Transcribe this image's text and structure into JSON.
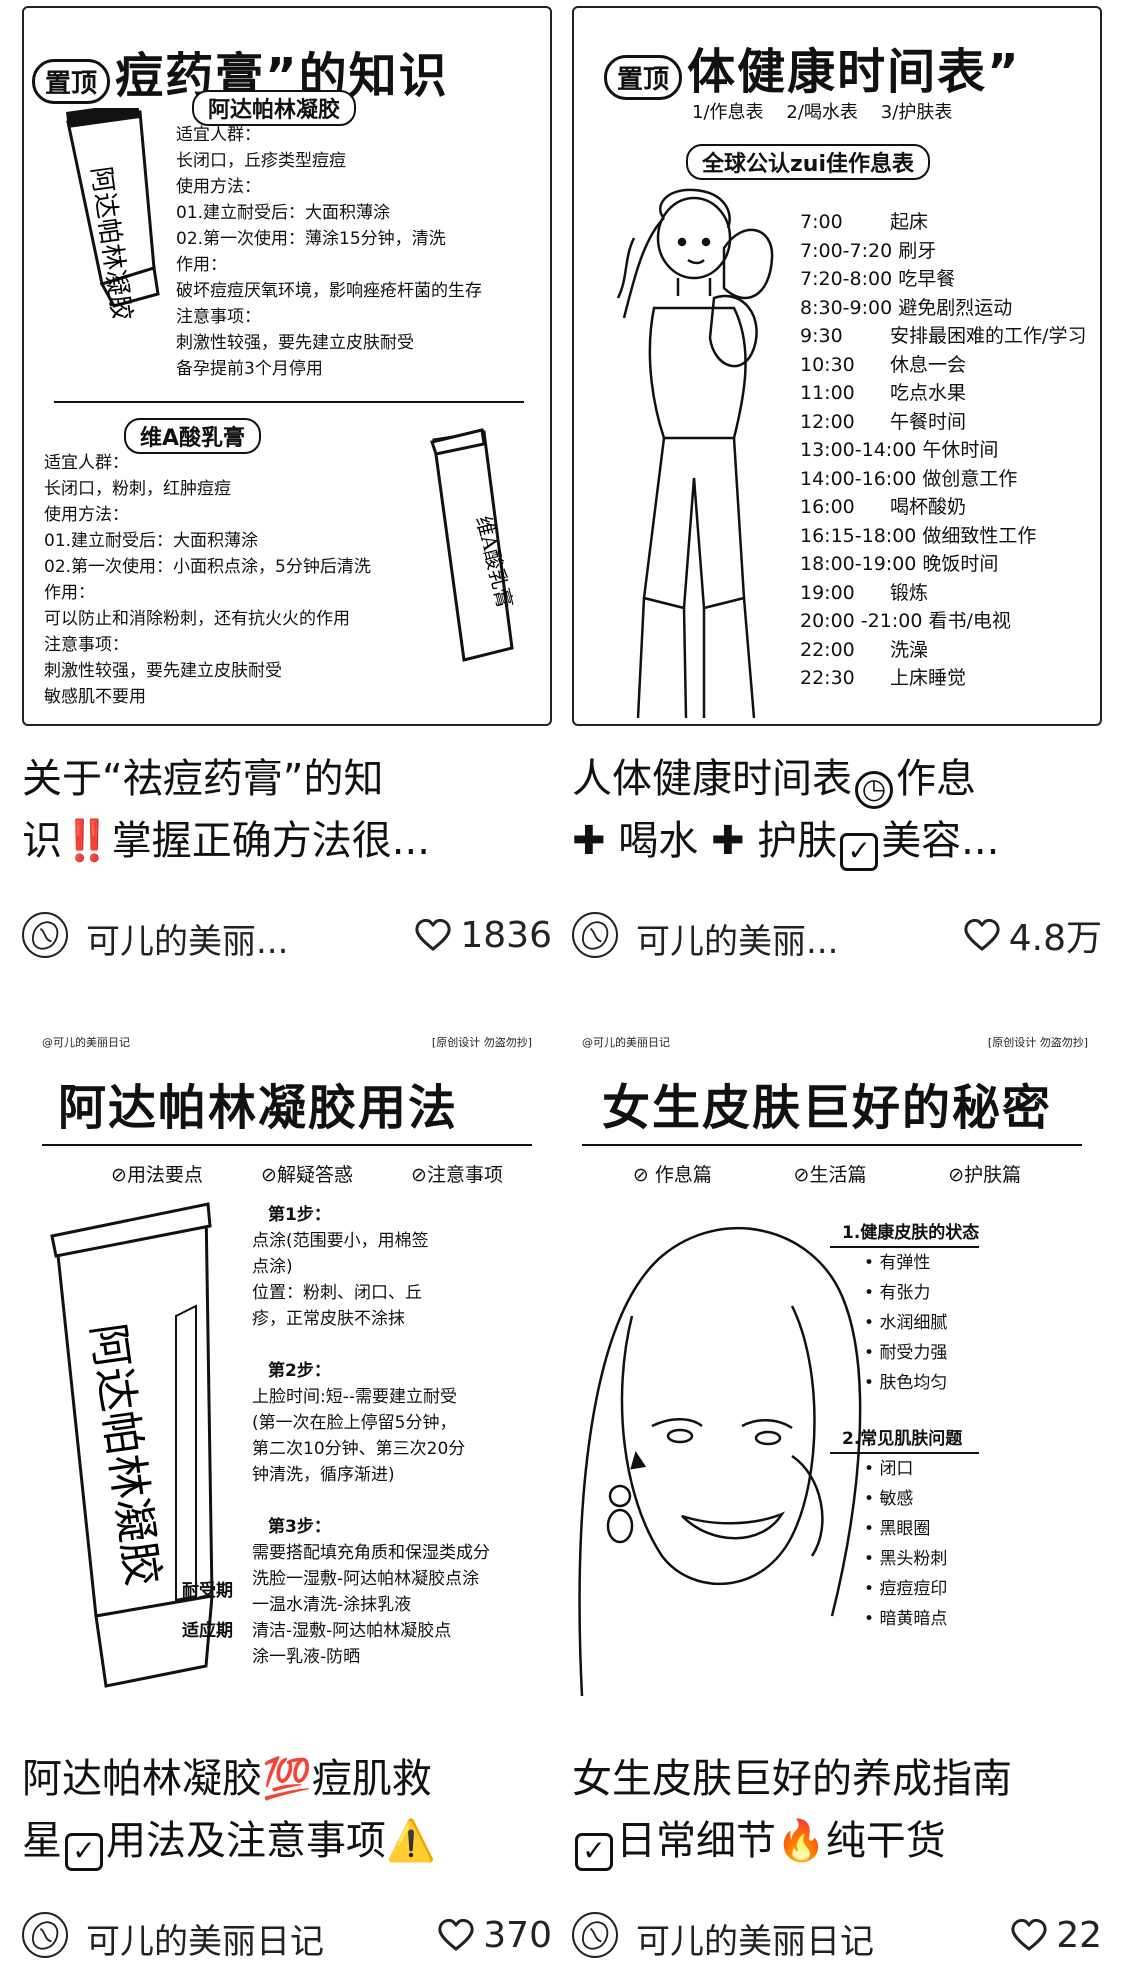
{
  "feed": [
    {
      "cover": {
        "pin": "置顶",
        "title": "痘药膏”的知识",
        "section1": {
          "pill": "阿达帕林凝胶",
          "lines": [
            "适宜人群：",
            "长闭口，丘疹类型痘痘",
            "使用方法：",
            "01.建立耐受后：大面积薄涂",
            "02.第一次使用：薄涂15分钟，清洗",
            "作用：",
            "破坏痘痘厌氧环境，影响痤疮杆菌的生存",
            "注意事项：",
            "刺激性较强，要先建立皮肤耐受",
            "备孕提前3个月停用"
          ],
          "tube_label": "阿达帕林凝胶"
        },
        "section2": {
          "pill": "维A酸乳膏",
          "lines": [
            "适宜人群：",
            "长闭口，粉刺，红肿痘痘",
            "使用方法：",
            "01.建立耐受后：大面积薄涂",
            "02.第一次使用：小面积点涂，5分钟后清洗",
            "作用：",
            "可以防止和消除粉刺，还有抗火火的作用",
            "注意事项：",
            "刺激性较强，要先建立皮肤耐受",
            "敏感肌不要用"
          ],
          "tube_label": "维A酸乳膏"
        }
      },
      "caption_lines": [
        "关于“祛痘药膏”的知",
        "识‼️掌握正确方法很..."
      ],
      "author": "可儿的美丽...",
      "likes": "1836"
    },
    {
      "cover": {
        "pin": "置顶",
        "title": "体健康时间表”",
        "subtitle": "1/作息表    2/喝水表    3/护肤表",
        "pill": "全球公认zui佳作息表",
        "schedule": [
          {
            "time": "7:00",
            "item": "起床"
          },
          {
            "time": "7:00-7:20",
            "item": "刷牙"
          },
          {
            "time": "7:20-8:00",
            "item": "吃早餐"
          },
          {
            "time": "8:30-9:00",
            "item": "避免剧烈运动"
          },
          {
            "time": "9:30",
            "item": "安排最困难的工作/学习"
          },
          {
            "time": "10:30",
            "item": "休息一会"
          },
          {
            "time": "11:00",
            "item": "吃点水果"
          },
          {
            "time": "12:00",
            "item": "午餐时间"
          },
          {
            "time": "13:00-14:00",
            "item": "午休时间"
          },
          {
            "time": "14:00-16:00",
            "item": "做创意工作"
          },
          {
            "time": "16:00",
            "item": "喝杯酸奶"
          },
          {
            "time": "16:15-18:00",
            "item": "做细致性工作"
          },
          {
            "time": "18:00-19:00",
            "item": "晚饭时间"
          },
          {
            "time": "19:00",
            "item": "锻炼"
          },
          {
            "time": "20:00 -21:00",
            "item": "看书/电视"
          },
          {
            "time": "22:00",
            "item": "洗澡"
          },
          {
            "time": "22:30",
            "item": "上床睡觉"
          }
        ]
      },
      "caption_lines": [
        "人体健康时间表",
        "作息",
        "喝水",
        "护肤",
        "美容..."
      ],
      "author": "可儿的美丽...",
      "likes": "4.8万"
    },
    {
      "cover": {
        "watermark": "@可儿的美丽日记",
        "tag": "[原创设计 勿盗勿抄]",
        "title": "阿达帕林凝胶用法",
        "tabs": [
          "⊘用法要点",
          "⊘解疑答惑",
          "⊘注意事项"
        ],
        "tube_label": "阿达帕林凝胶",
        "step1": {
          "head": "第1步：",
          "lines": [
            "点涂(范围要小，用棉签",
            "点涂)",
            "位置：粉刺、闭口、丘",
            "疹，正常皮肤不涂抹"
          ]
        },
        "step2": {
          "head": "第2步：",
          "lines": [
            "上脸时间:短--需要建立耐受",
            "(第一次在脸上停留5分钟，",
            "第二次10分钟、第三次20分",
            "钟清洗，循序渐进)"
          ]
        },
        "step3": {
          "head": "第3步：",
          "lines": [
            "需要搭配填充角质和保湿类成分"
          ],
          "tolerance_label": "耐受期",
          "tolerance_lines": [
            "洗脸一湿敷-阿达帕林凝胶点涂",
            "一温水清洗-涂抹乳液"
          ],
          "adapt_label": "适应期",
          "adapt_lines": [
            "清洁-湿敷-阿达帕林凝胶点",
            "涂一乳液-防晒"
          ]
        }
      },
      "caption_lines": [
        "阿达帕林凝胶",
        "💯",
        "痘肌救",
        "星",
        "用法及注意事项",
        "⚠️"
      ],
      "author": "可儿的美丽日记",
      "likes": "370"
    },
    {
      "cover": {
        "watermark": "@可儿的美丽日记",
        "tag": "[原创设计 勿盗勿抄]",
        "title": "女生皮肤巨好的秘密",
        "tabs": [
          "⊘ 作息篇",
          "⊘生活篇",
          "⊘护肤篇"
        ],
        "group1": {
          "head": "1.健康皮肤的状态",
          "items": [
            "有弹性",
            "有张力",
            "水润细腻",
            "耐受力强",
            "肤色均匀"
          ]
        },
        "group2": {
          "head": "2.常见肌肤问题",
          "items": [
            "闭口",
            "敏感",
            "黑眼圈",
            "黑头粉刺",
            "痘痘痘印",
            "暗黄暗点"
          ]
        }
      },
      "caption_lines": [
        "女生皮肤巨好的养成指南",
        "日常细节",
        "🔥",
        "纯干货"
      ],
      "author": "可儿的美丽日记",
      "likes": "22"
    }
  ]
}
